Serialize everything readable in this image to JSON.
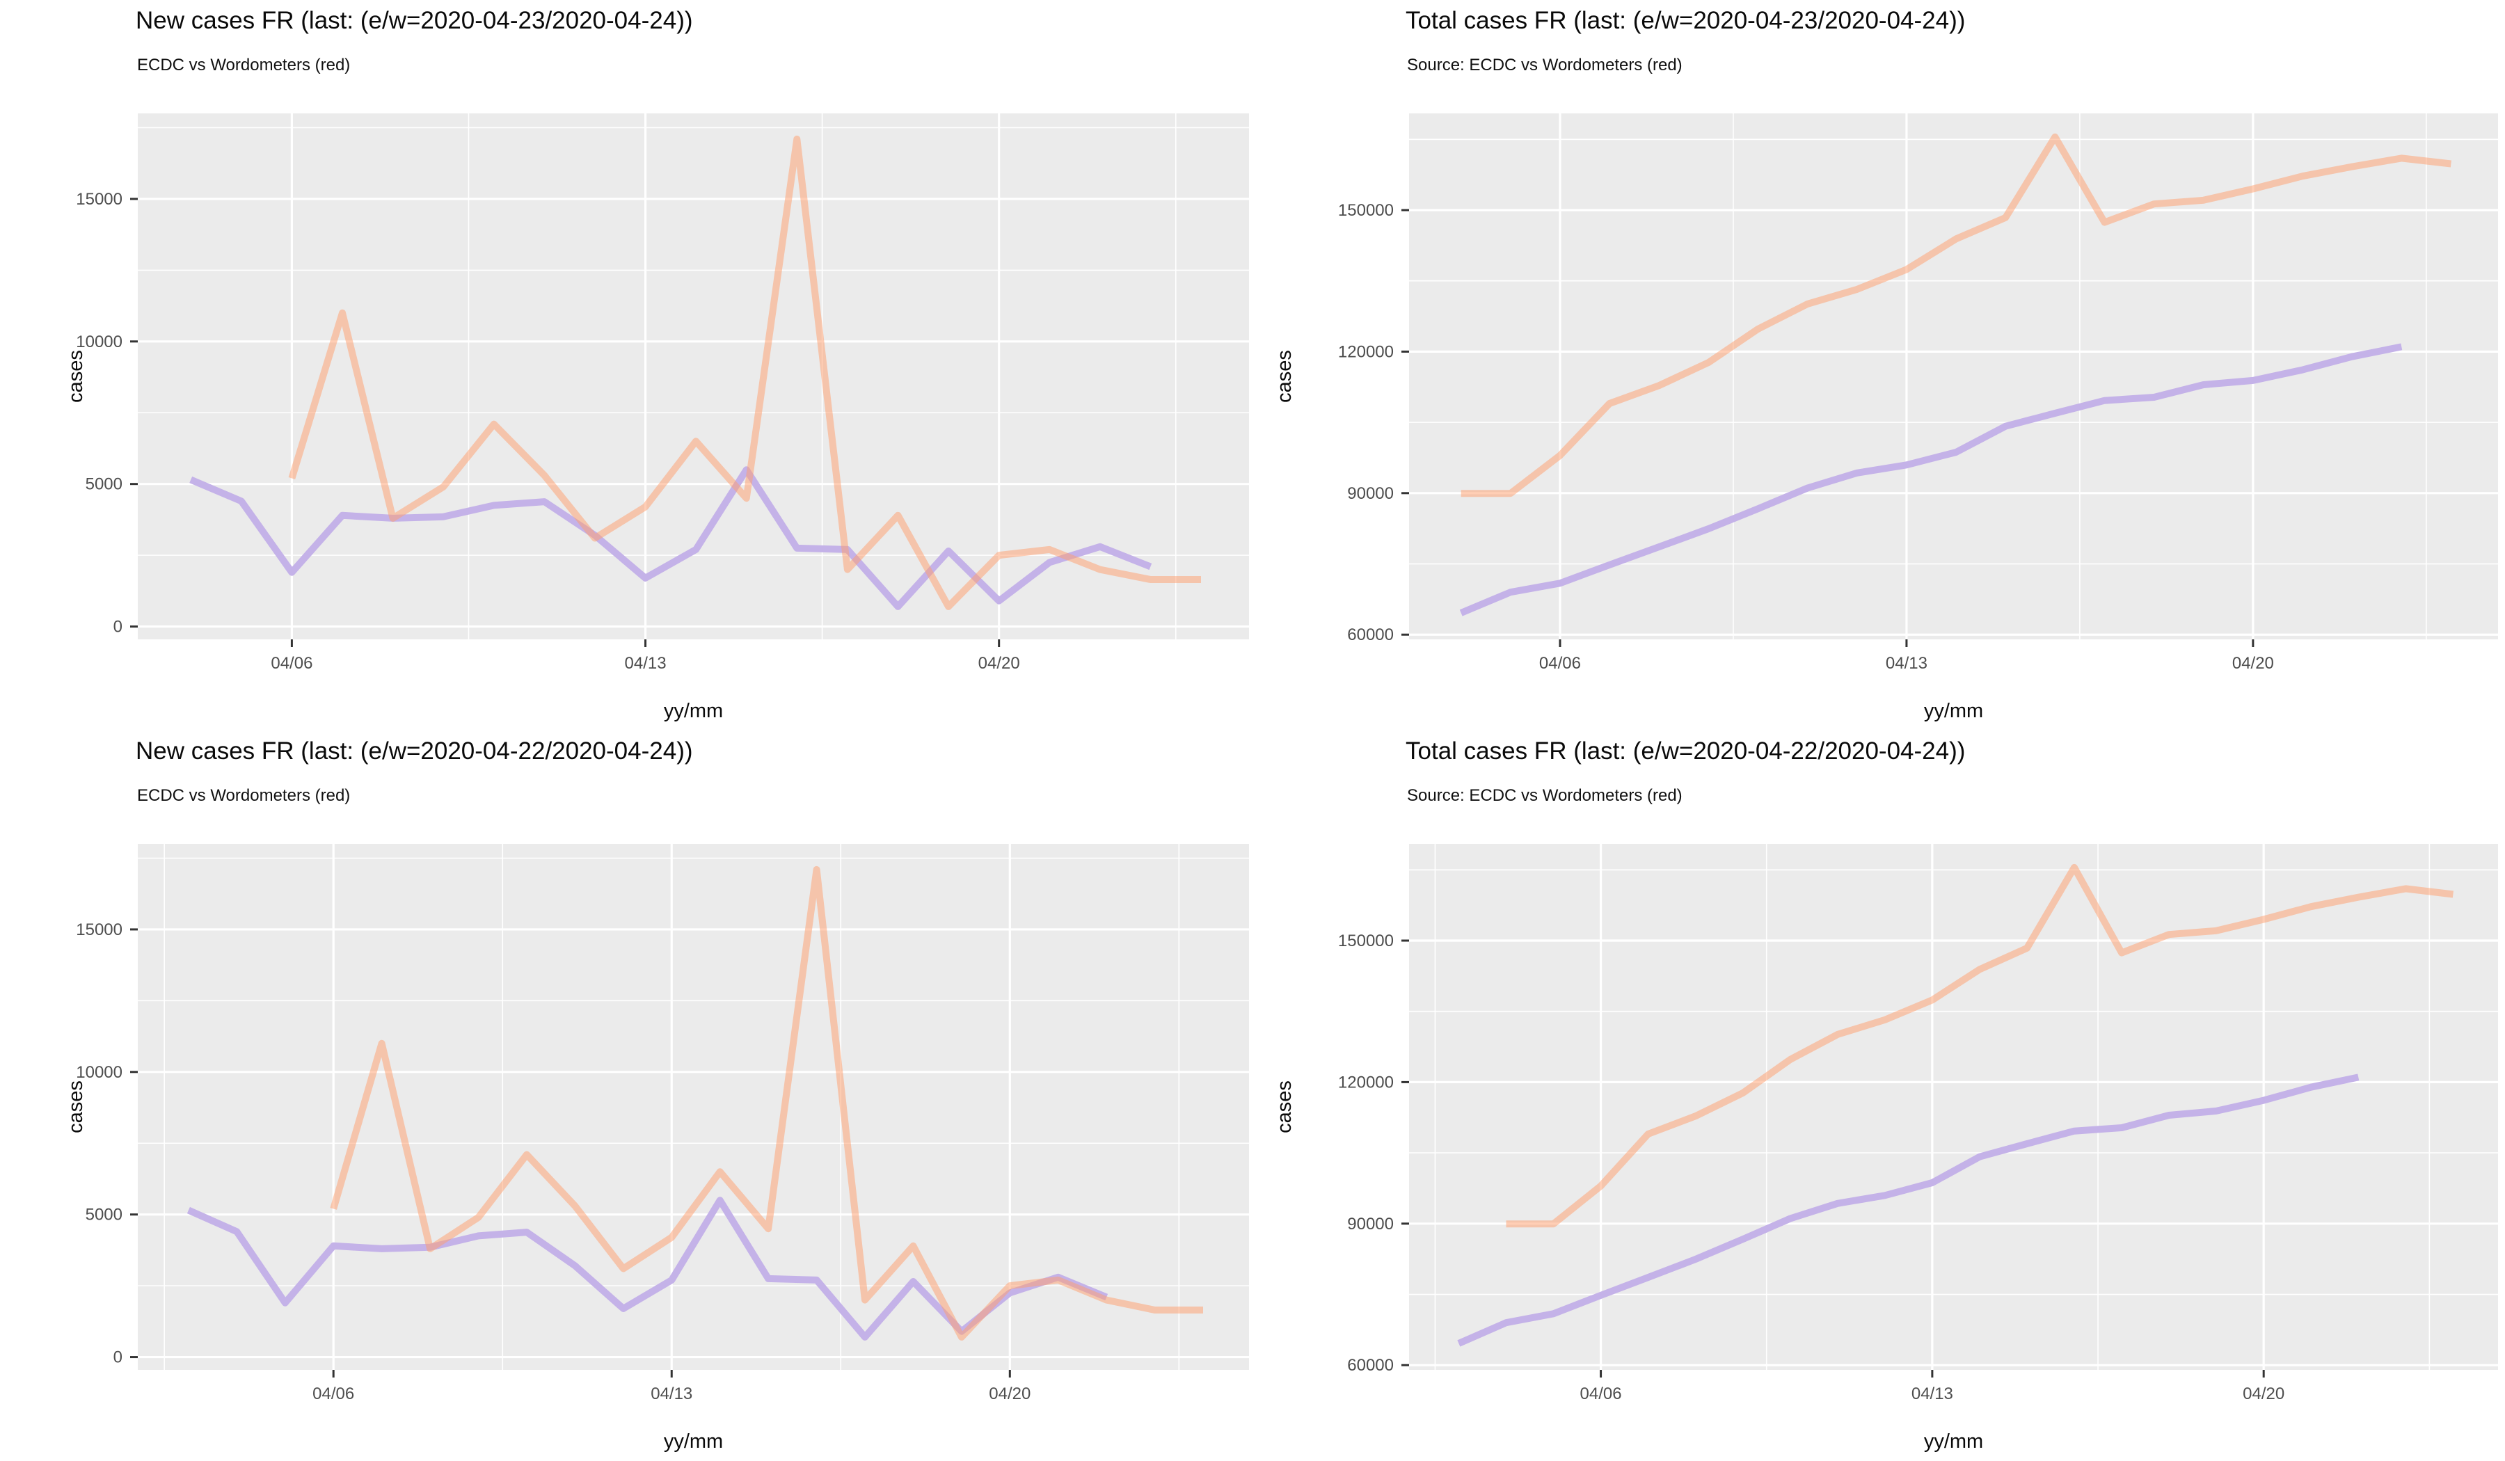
{
  "colors": {
    "background": "#ffffff",
    "panel_bg": "#EBEBEB",
    "grid": "#FFFFFF",
    "tick_mark": "#333333",
    "tick_label": "#4D4D4D",
    "axis_title": "#0a0a0a",
    "ecdc_line": "#C4B2E8",
    "worldometers_line": "rgba(255,157,107,0.5)"
  },
  "charts": [
    {
      "title": "New cases FR (last: (e/w=2020-04-23/2020-04-24))",
      "subtitle": "ECDC vs Wordometers (red)",
      "xlabel": "yy/mm",
      "ylabel": "cases",
      "chart_data": {
        "type": "line",
        "x_unit": "date 2020-04-DD",
        "x_domain_days": [
          2.95,
          24.95
        ],
        "y_domain": [
          -450,
          18000
        ],
        "x_ticks": [
          {
            "label": "04/06",
            "day": 6
          },
          {
            "label": "04/13",
            "day": 13
          },
          {
            "label": "04/20",
            "day": 20
          }
        ],
        "x_minor_days": [
          9.5,
          16.5,
          23.5
        ],
        "y_ticks": [
          {
            "label": "0",
            "value": 0
          },
          {
            "label": "5000",
            "value": 5000
          },
          {
            "label": "10000",
            "value": 10000
          },
          {
            "label": "15000",
            "value": 15000
          }
        ],
        "y_minor": [
          2500,
          7500,
          12500,
          17500
        ],
        "grid": true,
        "legend": "none",
        "series": [
          {
            "name": "ECDC",
            "color": "#C4B2E8",
            "days": [
              4,
              5,
              6,
              7,
              8,
              9,
              10,
              11,
              12,
              13,
              14,
              15,
              16,
              17,
              18,
              19,
              20,
              21,
              22,
              23
            ],
            "values": [
              5150,
              4400,
              1900,
              3900,
              3800,
              3850,
              4250,
              4380,
              3200,
              1700,
              2700,
              5500,
              2750,
              2700,
              700,
              2650,
              900,
              2250,
              2800,
              2100
            ]
          },
          {
            "name": "Wordometers (red)",
            "color": "rgba(255,157,107,0.5)",
            "days": [
              6,
              7,
              8,
              9,
              10,
              11,
              12,
              13,
              14,
              15,
              16,
              17,
              18,
              19,
              20,
              21,
              22,
              23,
              24
            ],
            "values": [
              5200,
              11000,
              3800,
              4900,
              7100,
              5300,
              3100,
              4200,
              6500,
              4500,
              17100,
              2000,
              3900,
              700,
              2500,
              2700,
              2000,
              1650,
              1650
            ]
          }
        ]
      }
    },
    {
      "title": "Total cases FR (last: (e/w=2020-04-23/2020-04-24))",
      "subtitle": "Source: ECDC vs Wordometers (red)",
      "xlabel": "yy/mm",
      "ylabel": "cases",
      "chart_data": {
        "type": "line",
        "x_unit": "date 2020-04-DD",
        "x_domain_days": [
          2.95,
          24.95
        ],
        "y_domain": [
          59000,
          170500
        ],
        "x_ticks": [
          {
            "label": "04/06",
            "day": 6
          },
          {
            "label": "04/13",
            "day": 13
          },
          {
            "label": "04/20",
            "day": 20
          }
        ],
        "x_minor_days": [
          9.5,
          16.5,
          23.5
        ],
        "y_ticks": [
          {
            "label": "60000",
            "value": 60000
          },
          {
            "label": "90000",
            "value": 90000
          },
          {
            "label": "120000",
            "value": 120000
          },
          {
            "label": "150000",
            "value": 150000
          }
        ],
        "y_minor": [
          75000,
          105000,
          135000,
          165000
        ],
        "grid": true,
        "legend": "none",
        "series": [
          {
            "name": "ECDC",
            "color": "#C4B2E8",
            "days": [
              4,
              5,
              6,
              7,
              8,
              9,
              10,
              11,
              12,
              13,
              14,
              15,
              16,
              17,
              18,
              19,
              20,
              21,
              22,
              23
            ],
            "values": [
              64600,
              69000,
              70900,
              74800,
              78600,
              82450,
              86700,
              91080,
              94280,
              95980,
              98680,
              104180,
              106930,
              109630,
              110330,
              112980,
              113880,
              116130,
              118930,
              121030
            ]
          },
          {
            "name": "Wordometers (red)",
            "color": "rgba(255,157,107,0.5)",
            "days": [
              4,
              5,
              6,
              7,
              8,
              9,
              10,
              11,
              12,
              13,
              14,
              15,
              16,
              17,
              18,
              19,
              20,
              21,
              22,
              23,
              24
            ],
            "values": [
              89950,
              89950,
              98000,
              109000,
              112800,
              117700,
              124800,
              130100,
              133200,
              137400,
              143900,
              148400,
              165500,
              147400,
              151300,
              152100,
              154500,
              157200,
              159200,
              161000,
              159800
            ]
          }
        ]
      }
    },
    {
      "title": "New cases FR (last: (e/w=2020-04-22/2020-04-24))",
      "subtitle": "ECDC vs Wordometers (red)",
      "xlabel": "yy/mm",
      "ylabel": "cases",
      "chart_data": {
        "type": "line",
        "x_unit": "date 2020-04-DD",
        "x_domain_days": [
          1.95,
          24.95
        ],
        "y_domain": [
          -450,
          18000
        ],
        "x_ticks": [
          {
            "label": "04/06",
            "day": 6
          },
          {
            "label": "04/13",
            "day": 13
          },
          {
            "label": "04/20",
            "day": 20
          }
        ],
        "x_minor_days": [
          2.5,
          9.5,
          16.5,
          23.5
        ],
        "y_ticks": [
          {
            "label": "0",
            "value": 0
          },
          {
            "label": "5000",
            "value": 5000
          },
          {
            "label": "10000",
            "value": 10000
          },
          {
            "label": "15000",
            "value": 15000
          }
        ],
        "y_minor": [
          2500,
          7500,
          12500,
          17500
        ],
        "grid": true,
        "legend": "none",
        "series": [
          {
            "name": "ECDC",
            "color": "#C4B2E8",
            "days": [
              3,
              4,
              5,
              6,
              7,
              8,
              9,
              10,
              11,
              12,
              13,
              14,
              15,
              16,
              17,
              18,
              19,
              20,
              21,
              22
            ],
            "values": [
              5150,
              4400,
              1900,
              3900,
              3800,
              3850,
              4250,
              4380,
              3200,
              1700,
              2700,
              5500,
              2750,
              2700,
              700,
              2650,
              900,
              2250,
              2800,
              2100
            ]
          },
          {
            "name": "Wordometers (red)",
            "color": "rgba(255,157,107,0.5)",
            "days": [
              6,
              7,
              8,
              9,
              10,
              11,
              12,
              13,
              14,
              15,
              16,
              17,
              18,
              19,
              20,
              21,
              22,
              23,
              24
            ],
            "values": [
              5200,
              11000,
              3800,
              4900,
              7100,
              5300,
              3100,
              4200,
              6500,
              4500,
              17100,
              2000,
              3900,
              700,
              2500,
              2700,
              2000,
              1650,
              1650
            ]
          }
        ]
      }
    },
    {
      "title": "Total cases FR (last: (e/w=2020-04-22/2020-04-24))",
      "subtitle": "Source: ECDC vs Wordometers (red)",
      "xlabel": "yy/mm",
      "ylabel": "cases",
      "chart_data": {
        "type": "line",
        "x_unit": "date 2020-04-DD",
        "x_domain_days": [
          1.95,
          24.95
        ],
        "y_domain": [
          59000,
          170500
        ],
        "x_ticks": [
          {
            "label": "04/06",
            "day": 6
          },
          {
            "label": "04/13",
            "day": 13
          },
          {
            "label": "04/20",
            "day": 20
          }
        ],
        "x_minor_days": [
          2.5,
          9.5,
          16.5,
          23.5
        ],
        "y_ticks": [
          {
            "label": "60000",
            "value": 60000
          },
          {
            "label": "90000",
            "value": 90000
          },
          {
            "label": "120000",
            "value": 120000
          },
          {
            "label": "150000",
            "value": 150000
          }
        ],
        "y_minor": [
          75000,
          105000,
          135000,
          165000
        ],
        "grid": true,
        "legend": "none",
        "series": [
          {
            "name": "ECDC",
            "color": "#C4B2E8",
            "days": [
              3,
              4,
              5,
              6,
              7,
              8,
              9,
              10,
              11,
              12,
              13,
              14,
              15,
              16,
              17,
              18,
              19,
              20,
              21,
              22
            ],
            "values": [
              64600,
              69000,
              70900,
              74800,
              78600,
              82450,
              86700,
              91080,
              94280,
              95980,
              98680,
              104180,
              106930,
              109630,
              110330,
              112980,
              113880,
              116130,
              118930,
              121030
            ]
          },
          {
            "name": "Wordometers (red)",
            "color": "rgba(255,157,107,0.5)",
            "days": [
              4,
              5,
              6,
              7,
              8,
              9,
              10,
              11,
              12,
              13,
              14,
              15,
              16,
              17,
              18,
              19,
              20,
              21,
              22,
              23,
              24
            ],
            "values": [
              89950,
              89950,
              98000,
              109000,
              112800,
              117700,
              124800,
              130100,
              133200,
              137400,
              143900,
              148400,
              165500,
              147400,
              151300,
              152100,
              154500,
              157200,
              159200,
              161000,
              159800
            ]
          }
        ]
      }
    }
  ]
}
